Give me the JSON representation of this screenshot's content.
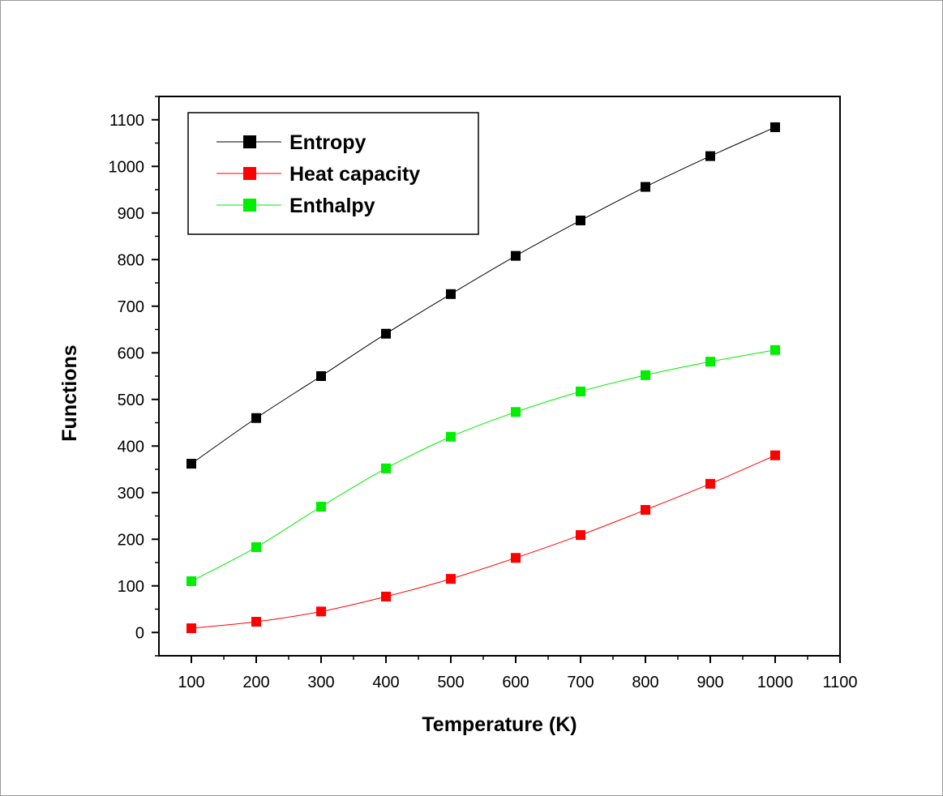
{
  "chart_data": {
    "type": "line",
    "title": "",
    "xlabel": "Temperature (K)",
    "ylabel": "Functions",
    "xlim": [
      50,
      1100
    ],
    "ylim": [
      -50,
      1150
    ],
    "xticks": [
      100,
      200,
      300,
      400,
      500,
      600,
      700,
      800,
      900,
      1000,
      1100
    ],
    "yticks": [
      0,
      100,
      200,
      300,
      400,
      500,
      600,
      700,
      800,
      900,
      1000,
      1100
    ],
    "grid": false,
    "legend_position": "top-left",
    "x": [
      100,
      200,
      300,
      400,
      500,
      600,
      700,
      800,
      900,
      1000
    ],
    "series": [
      {
        "name": "Entropy",
        "color": "#000000",
        "values": [
          362,
          460,
          550,
          641,
          726,
          808,
          884,
          956,
          1022,
          1084
        ]
      },
      {
        "name": "Heat capacity",
        "color": "#ff0000",
        "values": [
          9,
          23,
          45,
          77,
          115,
          160,
          209,
          263,
          319,
          380
        ]
      },
      {
        "name": "Enthalpy",
        "color": "#00ee00",
        "values": [
          110,
          183,
          270,
          352,
          420,
          473,
          517,
          552,
          581,
          606
        ]
      }
    ]
  }
}
